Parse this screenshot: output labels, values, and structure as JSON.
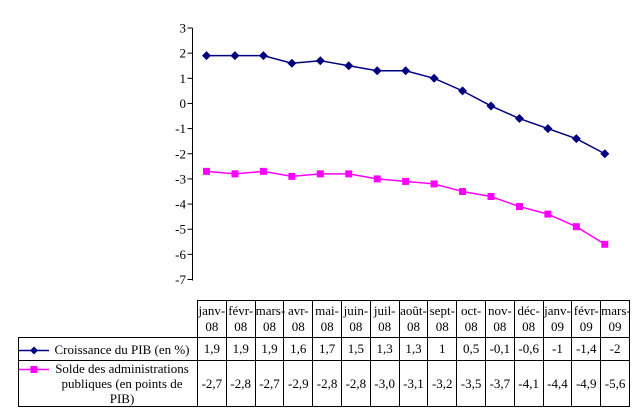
{
  "chart_data": {
    "type": "line",
    "title": "",
    "xlabel": "",
    "ylabel": "",
    "ylim": [
      -7,
      3
    ],
    "yticks": [
      3,
      2,
      1,
      0,
      -1,
      -2,
      -3,
      -4,
      -5,
      -6,
      -7
    ],
    "grid": false,
    "legend_position": "left-of-data-table",
    "categories": [
      "janv-08",
      "févr-08",
      "mars-08",
      "avr-08",
      "mai-08",
      "juin-08",
      "juil-08",
      "août-08",
      "sept-08",
      "oct-08",
      "nov-08",
      "déc-08",
      "janv-09",
      "févr-09",
      "mars-09"
    ],
    "series": [
      {
        "name": "Croissance du PIB (en %)",
        "color": "#000080",
        "marker": "diamond",
        "values": [
          1.9,
          1.9,
          1.9,
          1.6,
          1.7,
          1.5,
          1.3,
          1.3,
          1,
          0.5,
          -0.1,
          -0.6,
          -1,
          -1.4,
          -2
        ]
      },
      {
        "name": "Solde des administrations publiques (en points de PIB)",
        "color": "#FF00FF",
        "marker": "square",
        "values": [
          -2.7,
          -2.8,
          -2.7,
          -2.9,
          -2.8,
          -2.8,
          -3.0,
          -3.1,
          -3.2,
          -3.5,
          -3.7,
          -4.1,
          -4.4,
          -4.9,
          -5.6
        ]
      }
    ]
  },
  "table": {
    "header": {
      "months": [
        [
          "janv-",
          "08"
        ],
        [
          "févr-",
          "08"
        ],
        [
          "mars-",
          "08"
        ],
        [
          "avr-",
          "08"
        ],
        [
          "mai-",
          "08"
        ],
        [
          "juin-",
          "08"
        ],
        [
          "juil-",
          "08"
        ],
        [
          "août-",
          "08"
        ],
        [
          "sept-",
          "08"
        ],
        [
          "oct-",
          "08"
        ],
        [
          "nov-",
          "08"
        ],
        [
          "déc-",
          "08"
        ],
        [
          "janv-",
          "09"
        ],
        [
          "févr-",
          "09"
        ],
        [
          "mars-",
          "09"
        ]
      ]
    },
    "rows": [
      {
        "legend": "Croissance du PIB (en %)",
        "marker": "diamond",
        "color": "#000080",
        "cells": [
          "1,9",
          "1,9",
          "1,9",
          "1,6",
          "1,7",
          "1,5",
          "1,3",
          "1,3",
          "1",
          "0,5",
          "-0,1",
          "-0,6",
          "-1",
          "-1,4",
          "-2"
        ]
      },
      {
        "legend": "Solde des administrations publiques (en points de PIB)",
        "marker": "square",
        "color": "#FF00FF",
        "cells": [
          "-2,7",
          "-2,8",
          "-2,7",
          "-2,9",
          "-2,8",
          "-2,8",
          "-3,0",
          "-3,1",
          "-3,2",
          "-3,5",
          "-3,7",
          "-4,1",
          "-4,4",
          "-4,9",
          "-5,6"
        ]
      }
    ]
  }
}
